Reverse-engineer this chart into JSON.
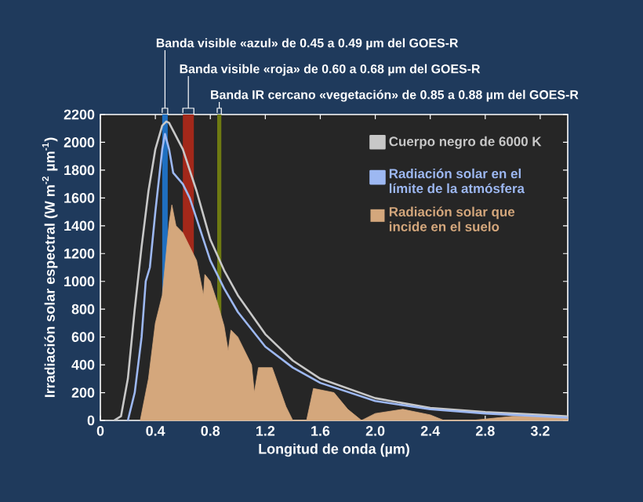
{
  "chart_data": {
    "type": "line",
    "xlabel": "Longitud de onda (µm)",
    "ylabel": "Irradiación solar espectral (W m$^{-2}$ µm$^{-1}$)",
    "xlim": [
      0,
      3.4
    ],
    "ylim": [
      0,
      2200
    ],
    "xticks": [
      0,
      0.4,
      0.8,
      1.2,
      1.6,
      {
        "value": 2,
        "label": "2.0"
      },
      2.4,
      2.8,
      3.2
    ],
    "yticks": [
      0,
      200,
      400,
      600,
      800,
      1000,
      1200,
      1400,
      1600,
      1800,
      2000,
      2200
    ],
    "legend": "top right",
    "series": [
      {
        "name": "Cuerpo negro de 6000 K",
        "color": "#c8c8c8",
        "x": [
          0.1,
          0.15,
          0.2,
          0.25,
          0.3,
          0.35,
          0.4,
          0.45,
          0.48,
          0.5,
          0.6,
          0.7,
          0.8,
          0.9,
          1.0,
          1.2,
          1.4,
          1.6,
          2.0,
          2.4,
          2.8,
          3.2,
          3.4
        ],
        "values": [
          0,
          30,
          300,
          800,
          1250,
          1650,
          1950,
          2120,
          2150,
          2140,
          1950,
          1650,
          1300,
          1080,
          900,
          620,
          430,
          300,
          160,
          90,
          60,
          40,
          30
        ]
      },
      {
        "name": "Radiación solar  en el límite de la atmósfera",
        "color": "#9db8f2",
        "x": [
          0.2,
          0.25,
          0.3,
          0.33,
          0.36,
          0.4,
          0.45,
          0.47,
          0.5,
          0.53,
          0.6,
          0.65,
          0.7,
          0.8,
          0.9,
          1.0,
          1.2,
          1.4,
          1.6,
          2.0,
          2.4,
          2.8,
          3.2,
          3.4
        ],
        "values": [
          0,
          200,
          600,
          1000,
          1100,
          1500,
          1950,
          2060,
          1950,
          1780,
          1700,
          1600,
          1450,
          1150,
          950,
          780,
          530,
          380,
          270,
          140,
          80,
          50,
          30,
          20
        ]
      },
      {
        "name": "Radiación solar que incide en el suelo",
        "type": "area",
        "color": "#d4a77c",
        "x": [
          0.29,
          0.35,
          0.4,
          0.45,
          0.5,
          0.52,
          0.55,
          0.6,
          0.7,
          0.75,
          0.76,
          0.8,
          0.85,
          0.9,
          0.93,
          0.95,
          1.0,
          1.1,
          1.12,
          1.15,
          1.25,
          1.35,
          1.4,
          1.5,
          1.55,
          1.7,
          1.8,
          1.9,
          2.0,
          2.2,
          2.4,
          2.5,
          2.7,
          2.9,
          3.0,
          3.4
        ],
        "values": [
          0,
          300,
          700,
          900,
          1420,
          1550,
          1400,
          1350,
          1150,
          900,
          1050,
          1000,
          850,
          680,
          500,
          650,
          600,
          400,
          200,
          380,
          380,
          100,
          0,
          0,
          230,
          200,
          80,
          0,
          50,
          80,
          40,
          0,
          0,
          20,
          30,
          30
        ]
      }
    ],
    "bands": [
      {
        "axis": "x",
        "from": 0.45,
        "to": 0.49,
        "label": "Banda visible «azul» de 0.45 a 0.49 µm del GOES-R",
        "color": "#1f6fc0"
      },
      {
        "axis": "x",
        "from": 0.6,
        "to": 0.68,
        "label": "Banda visible «roja» de 0.60 a 0.68 µm del GOES-R",
        "color": "#a3281a"
      },
      {
        "axis": "x",
        "from": 0.85,
        "to": 0.88,
        "label": "Banda IR cercano «vegetación» de 0.85 a 0.88 µm del GOES-R",
        "color": "#6e7a12"
      }
    ]
  }
}
